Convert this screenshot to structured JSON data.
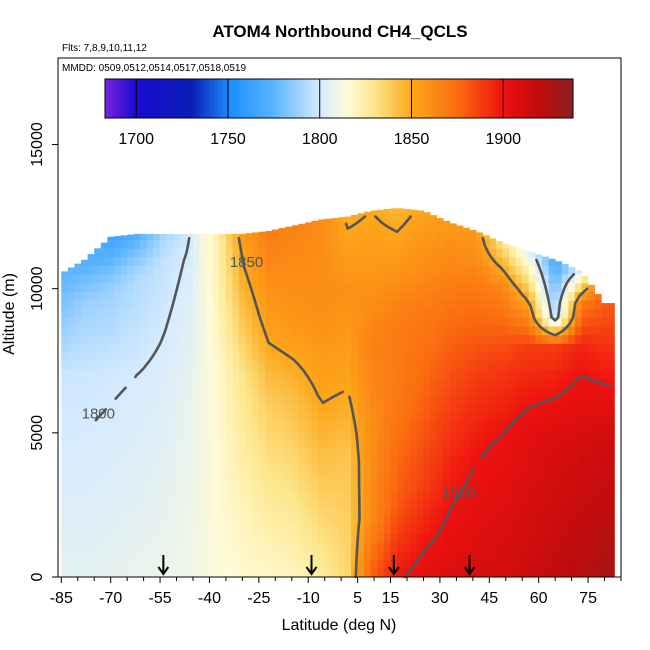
{
  "chart_data": {
    "type": "heatmap",
    "title": "ATOM4 Northbound CH4_QCLS",
    "subtitle_flights": "Flts: 7,8,9,10,11,12",
    "subtitle_dates": "MMDD: 0509,0512,0514,0517,0518,0519",
    "xlabel": "Latitude (deg N)",
    "ylabel": "Altitude (m)",
    "xlim": [
      -86,
      85
    ],
    "ylim": [
      0,
      18000
    ],
    "x_ticks": [
      -85,
      -70,
      -55,
      -40,
      -25,
      -10,
      5,
      15,
      30,
      45,
      60,
      75
    ],
    "y_ticks": [
      0,
      5000,
      10000,
      15000
    ],
    "grid": false,
    "colorbar": {
      "min": 1683,
      "max": 1938,
      "ticks": [
        1700,
        1750,
        1800,
        1850,
        1900
      ],
      "stops": [
        {
          "v": 1683,
          "c": "#7a22e0"
        },
        {
          "v": 1700,
          "c": "#1a0ad0"
        },
        {
          "v": 1730,
          "c": "#0a1eb4"
        },
        {
          "v": 1752,
          "c": "#1e90ff"
        },
        {
          "v": 1775,
          "c": "#5ab4ff"
        },
        {
          "v": 1800,
          "c": "#d6ebff"
        },
        {
          "v": 1815,
          "c": "#fffbd8"
        },
        {
          "v": 1830,
          "c": "#fde68a"
        },
        {
          "v": 1850,
          "c": "#fca71a"
        },
        {
          "v": 1875,
          "c": "#fb6d10"
        },
        {
          "v": 1900,
          "c": "#ef1010"
        },
        {
          "v": 1920,
          "c": "#c00c0c"
        },
        {
          "v": 1938,
          "c": "#8c2020"
        }
      ]
    },
    "contours": [
      {
        "level": 1800,
        "label": "1800"
      },
      {
        "level": 1850,
        "label": "1850"
      },
      {
        "level": 1900,
        "label": "1900"
      }
    ],
    "profile_latitudes": [
      -54,
      -9,
      16,
      39
    ],
    "columns": [
      {
        "lat": -84,
        "top": 10600,
        "profile": [
          {
            "z": 0,
            "v": 1805
          },
          {
            "z": 7000,
            "v": 1798
          },
          {
            "z": 10600,
            "v": 1775
          }
        ]
      },
      {
        "lat": -78,
        "top": 11000,
        "profile": [
          {
            "z": 0,
            "v": 1805
          },
          {
            "z": 7000,
            "v": 1798
          },
          {
            "z": 9500,
            "v": 1788
          },
          {
            "z": 11000,
            "v": 1772
          }
        ]
      },
      {
        "lat": -70,
        "top": 11800,
        "profile": [
          {
            "z": 0,
            "v": 1806
          },
          {
            "z": 7000,
            "v": 1799
          },
          {
            "z": 10000,
            "v": 1788
          },
          {
            "z": 11800,
            "v": 1765
          }
        ]
      },
      {
        "lat": -62,
        "top": 11900,
        "profile": [
          {
            "z": 0,
            "v": 1807
          },
          {
            "z": 7000,
            "v": 1800
          },
          {
            "z": 10500,
            "v": 1792
          },
          {
            "z": 11900,
            "v": 1772
          }
        ]
      },
      {
        "lat": -54,
        "top": 11900,
        "profile": [
          {
            "z": 0,
            "v": 1808
          },
          {
            "z": 7000,
            "v": 1802
          },
          {
            "z": 11000,
            "v": 1796
          },
          {
            "z": 11900,
            "v": 1790
          }
        ]
      },
      {
        "lat": -46,
        "top": 11900,
        "profile": [
          {
            "z": 0,
            "v": 1810
          },
          {
            "z": 7000,
            "v": 1806
          },
          {
            "z": 11900,
            "v": 1800
          }
        ]
      },
      {
        "lat": -38,
        "top": 11900,
        "profile": [
          {
            "z": 0,
            "v": 1814
          },
          {
            "z": 7000,
            "v": 1816
          },
          {
            "z": 11900,
            "v": 1822
          }
        ]
      },
      {
        "lat": -30,
        "top": 11900,
        "profile": [
          {
            "z": 0,
            "v": 1816
          },
          {
            "z": 7000,
            "v": 1830
          },
          {
            "z": 11900,
            "v": 1855
          }
        ]
      },
      {
        "lat": -22,
        "top": 12000,
        "profile": [
          {
            "z": 0,
            "v": 1818
          },
          {
            "z": 6000,
            "v": 1838
          },
          {
            "z": 9000,
            "v": 1855
          },
          {
            "z": 12000,
            "v": 1868
          }
        ]
      },
      {
        "lat": -14,
        "top": 12200,
        "profile": [
          {
            "z": 0,
            "v": 1820
          },
          {
            "z": 6000,
            "v": 1842
          },
          {
            "z": 9000,
            "v": 1858
          },
          {
            "z": 12200,
            "v": 1866
          }
        ]
      },
      {
        "lat": -6,
        "top": 12400,
        "profile": [
          {
            "z": 0,
            "v": 1826
          },
          {
            "z": 6000,
            "v": 1850
          },
          {
            "z": 9000,
            "v": 1860
          },
          {
            "z": 12400,
            "v": 1862
          }
        ]
      },
      {
        "lat": 2,
        "top": 12500,
        "profile": [
          {
            "z": 0,
            "v": 1835
          },
          {
            "z": 4000,
            "v": 1840
          },
          {
            "z": 7000,
            "v": 1852
          },
          {
            "z": 10000,
            "v": 1860
          },
          {
            "z": 12500,
            "v": 1848
          }
        ]
      },
      {
        "lat": 9,
        "top": 12700,
        "profile": [
          {
            "z": 0,
            "v": 1878
          },
          {
            "z": 2000,
            "v": 1862
          },
          {
            "z": 5000,
            "v": 1860
          },
          {
            "z": 8000,
            "v": 1866
          },
          {
            "z": 12700,
            "v": 1850
          }
        ]
      },
      {
        "lat": 17,
        "top": 12800,
        "profile": [
          {
            "z": 0,
            "v": 1898
          },
          {
            "z": 2500,
            "v": 1880
          },
          {
            "z": 6000,
            "v": 1870
          },
          {
            "z": 9000,
            "v": 1868
          },
          {
            "z": 12800,
            "v": 1845
          }
        ]
      },
      {
        "lat": 25,
        "top": 12700,
        "profile": [
          {
            "z": 0,
            "v": 1905
          },
          {
            "z": 3000,
            "v": 1888
          },
          {
            "z": 6000,
            "v": 1878
          },
          {
            "z": 9000,
            "v": 1870
          },
          {
            "z": 12700,
            "v": 1852
          }
        ]
      },
      {
        "lat": 33,
        "top": 12300,
        "profile": [
          {
            "z": 0,
            "v": 1908
          },
          {
            "z": 3500,
            "v": 1896
          },
          {
            "z": 6500,
            "v": 1885
          },
          {
            "z": 9000,
            "v": 1874
          },
          {
            "z": 12300,
            "v": 1856
          }
        ]
      },
      {
        "lat": 41,
        "top": 12000,
        "profile": [
          {
            "z": 0,
            "v": 1910
          },
          {
            "z": 4000,
            "v": 1900
          },
          {
            "z": 7000,
            "v": 1888
          },
          {
            "z": 10000,
            "v": 1870
          },
          {
            "z": 12000,
            "v": 1855
          }
        ]
      },
      {
        "lat": 49,
        "top": 11600,
        "profile": [
          {
            "z": 0,
            "v": 1912
          },
          {
            "z": 4500,
            "v": 1902
          },
          {
            "z": 7500,
            "v": 1888
          },
          {
            "z": 10000,
            "v": 1865
          },
          {
            "z": 11600,
            "v": 1830
          }
        ]
      },
      {
        "lat": 57,
        "top": 11300,
        "profile": [
          {
            "z": 0,
            "v": 1915
          },
          {
            "z": 5000,
            "v": 1905
          },
          {
            "z": 8000,
            "v": 1888
          },
          {
            "z": 9500,
            "v": 1852
          },
          {
            "z": 11300,
            "v": 1805
          }
        ]
      },
      {
        "lat": 65,
        "top": 11000,
        "profile": [
          {
            "z": 0,
            "v": 1920
          },
          {
            "z": 5000,
            "v": 1908
          },
          {
            "z": 8000,
            "v": 1888
          },
          {
            "z": 9000,
            "v": 1790
          },
          {
            "z": 11000,
            "v": 1768
          }
        ]
      },
      {
        "lat": 73,
        "top": 10600,
        "profile": [
          {
            "z": 0,
            "v": 1924
          },
          {
            "z": 5000,
            "v": 1910
          },
          {
            "z": 8000,
            "v": 1895
          },
          {
            "z": 9500,
            "v": 1870
          },
          {
            "z": 10600,
            "v": 1805
          }
        ]
      },
      {
        "lat": 80,
        "top": 9500,
        "profile": [
          {
            "z": 0,
            "v": 1928
          },
          {
            "z": 5000,
            "v": 1912
          },
          {
            "z": 9500,
            "v": 1880
          }
        ]
      }
    ]
  }
}
